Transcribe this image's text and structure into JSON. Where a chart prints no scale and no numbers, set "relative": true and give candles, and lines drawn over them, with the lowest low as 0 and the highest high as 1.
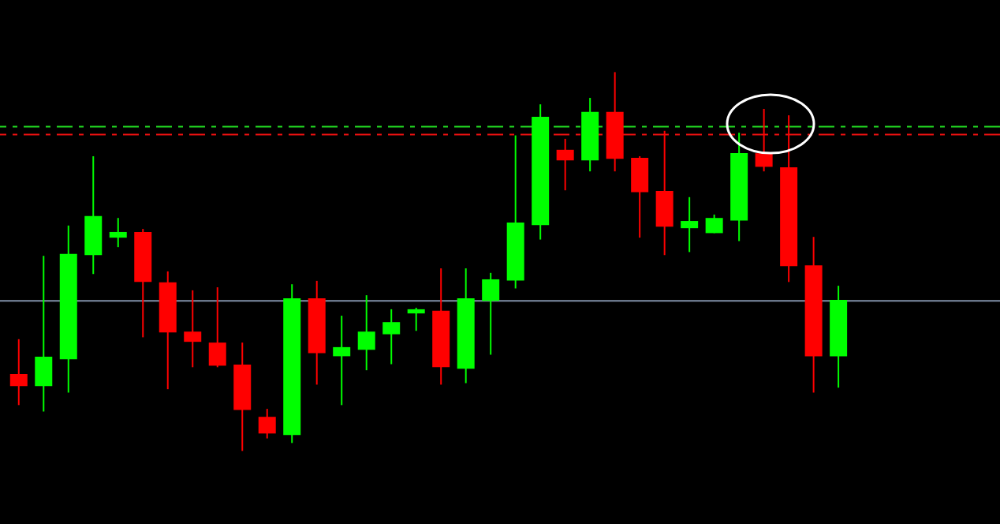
{
  "chart_data": {
    "type": "candlestick",
    "relative": true,
    "categories": [
      null,
      null,
      null,
      null,
      null,
      null,
      null,
      null,
      null,
      null,
      null,
      null,
      null,
      null,
      null,
      null,
      null,
      null,
      null,
      null,
      null,
      null,
      null,
      null,
      null,
      null,
      null,
      null,
      null,
      null,
      null,
      null,
      null,
      null
    ],
    "ohlc": [
      [
        0.203,
        0.295,
        0.121,
        0.171
      ],
      [
        0.171,
        0.515,
        0.104,
        0.249
      ],
      [
        0.242,
        0.595,
        0.154,
        0.52
      ],
      [
        0.517,
        0.778,
        0.467,
        0.62
      ],
      [
        0.563,
        0.615,
        0.538,
        0.578
      ],
      [
        0.578,
        0.586,
        0.3,
        0.446
      ],
      [
        0.445,
        0.474,
        0.163,
        0.313
      ],
      [
        0.315,
        0.424,
        0.221,
        0.288
      ],
      [
        0.286,
        0.432,
        0.221,
        0.225
      ],
      [
        0.228,
        0.286,
        0,
        0.108
      ],
      [
        0.09,
        0.111,
        0.033,
        0.046
      ],
      [
        0.042,
        0.44,
        0.021,
        0.403
      ],
      [
        0.403,
        0.449,
        0.175,
        0.258
      ],
      [
        0.25,
        0.357,
        0.121,
        0.274
      ],
      [
        0.267,
        0.411,
        0.213,
        0.315
      ],
      [
        0.308,
        0.374,
        0.229,
        0.34
      ],
      [
        0.363,
        0.378,
        0.317,
        0.374
      ],
      [
        0.37,
        0.482,
        0.175,
        0.221
      ],
      [
        0.217,
        0.482,
        0.179,
        0.403
      ],
      [
        0.396,
        0.47,
        0.254,
        0.453
      ],
      [
        0.45,
        0.833,
        0.429,
        0.603
      ],
      [
        0.596,
        0.915,
        0.558,
        0.882
      ],
      [
        0.795,
        0.824,
        0.688,
        0.767
      ],
      [
        0.767,
        0.932,
        0.738,
        0.895
      ],
      [
        0.895,
        1,
        0.738,
        0.771
      ],
      [
        0.774,
        0.778,
        0.563,
        0.683
      ],
      [
        0.686,
        0.845,
        0.517,
        0.592
      ],
      [
        0.588,
        0.67,
        0.525,
        0.607
      ],
      [
        0.575,
        0.624,
        0.575,
        0.615
      ],
      [
        0.608,
        0.84,
        0.554,
        0.786
      ],
      [
        0.786,
        0.903,
        0.738,
        0.75
      ],
      [
        0.749,
        0.886,
        0.446,
        0.488
      ],
      [
        0.49,
        0.565,
        0.154,
        0.25
      ],
      [
        0.25,
        0.436,
        0.167,
        0.399
      ]
    ],
    "colors": [
      "#ff0000",
      "#00ff00",
      "#00ff00",
      "#00ff00",
      "#00ff00",
      "#ff0000",
      "#ff0000",
      "#ff0000",
      "#ff0000",
      "#ff0000",
      "#ff0000",
      "#00ff00",
      "#ff0000",
      "#00ff00",
      "#00ff00",
      "#00ff00",
      "#00ff00",
      "#ff0000",
      "#00ff00",
      "#00ff00",
      "#00ff00",
      "#00ff00",
      "#ff0000",
      "#00ff00",
      "#ff0000",
      "#ff0000",
      "#ff0000",
      "#00ff00",
      "#00ff00",
      "#00ff00",
      "#ff0000",
      "#ff0000",
      "#ff0000",
      "#00ff00"
    ],
    "ref_lines": [
      {
        "axis": "y",
        "value": 0.856,
        "color": "#22dd22",
        "line_style": "dashed"
      },
      {
        "axis": "y",
        "value": 0.835,
        "color": "#ee1111",
        "line_style": "dashed"
      },
      {
        "axis": "y",
        "value": 0.396,
        "color": "#8090a8",
        "line_style": "solid"
      }
    ]
  }
}
